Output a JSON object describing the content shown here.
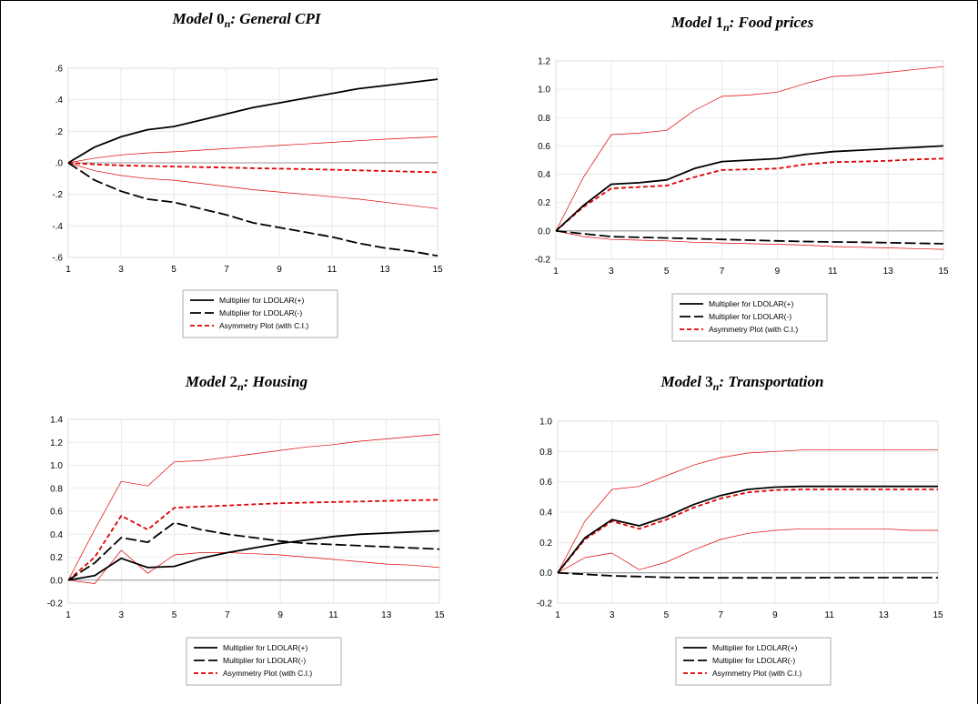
{
  "chart_data": [
    {
      "type": "line",
      "title": {
        "prefix": "Model ",
        "num": "0",
        "sub": "n",
        "suffix": ": General CPI"
      },
      "x": [
        1,
        2,
        3,
        4,
        5,
        6,
        7,
        8,
        9,
        10,
        11,
        12,
        13,
        14,
        15
      ],
      "x_ticks": [
        1,
        3,
        5,
        7,
        9,
        11,
        13,
        15
      ],
      "ylim": [
        -0.6,
        0.6
      ],
      "y_ticks": [
        -0.6,
        -0.4,
        -0.2,
        0.0,
        0.2,
        0.4,
        0.6
      ],
      "y_tick_labels": [
        "-.6",
        "-.4",
        "-.2",
        ".0",
        ".2",
        ".4",
        ".6"
      ],
      "grid": true,
      "legend_position": "bottom",
      "series": [
        {
          "name": "Multiplier for LDOLAR(+)",
          "style": "solid-black",
          "values": [
            0,
            0.1,
            0.165,
            0.21,
            0.23,
            0.27,
            0.31,
            0.35,
            0.38,
            0.41,
            0.44,
            0.47,
            0.49,
            0.51,
            0.53
          ]
        },
        {
          "name": "Multiplier for LDOLAR(-)",
          "style": "dash-black",
          "values": [
            0,
            -0.11,
            -0.18,
            -0.23,
            -0.25,
            -0.29,
            -0.33,
            -0.38,
            -0.41,
            -0.44,
            -0.47,
            -0.51,
            -0.54,
            -0.56,
            -0.59
          ]
        },
        {
          "name": "Asymmetry Plot (with C.I.)",
          "style": "dash-red",
          "values": [
            0,
            -0.01,
            -0.016,
            -0.02,
            -0.023,
            -0.027,
            -0.03,
            -0.034,
            -0.037,
            -0.04,
            -0.044,
            -0.048,
            -0.052,
            -0.056,
            -0.06
          ]
        },
        {
          "name": "",
          "style": "thin-red",
          "values": [
            0,
            0.03,
            0.05,
            0.063,
            0.07,
            0.08,
            0.09,
            0.1,
            0.11,
            0.12,
            0.13,
            0.14,
            0.15,
            0.158,
            0.165
          ]
        },
        {
          "name": "",
          "style": "thin-red",
          "values": [
            0,
            -0.05,
            -0.08,
            -0.1,
            -0.11,
            -0.13,
            -0.15,
            -0.17,
            -0.185,
            -0.2,
            -0.215,
            -0.23,
            -0.25,
            -0.27,
            -0.29
          ]
        }
      ]
    },
    {
      "type": "line",
      "title": {
        "prefix": "Model ",
        "num": "1",
        "sub": "n",
        "suffix": ": Food prices"
      },
      "x": [
        1,
        2,
        3,
        4,
        5,
        6,
        7,
        8,
        9,
        10,
        11,
        12,
        13,
        14,
        15
      ],
      "x_ticks": [
        1,
        3,
        5,
        7,
        9,
        11,
        13,
        15
      ],
      "ylim": [
        -0.2,
        1.2
      ],
      "y_ticks": [
        -0.2,
        0.0,
        0.2,
        0.4,
        0.6,
        0.8,
        1.0,
        1.2
      ],
      "y_tick_labels": [
        "-0.2",
        "0.0",
        "0.2",
        "0.4",
        "0.6",
        "0.8",
        "1.0",
        "1.2"
      ],
      "grid": true,
      "legend_position": "bottom",
      "series": [
        {
          "name": "Multiplier for LDOLAR(+)",
          "style": "solid-black",
          "values": [
            0,
            0.18,
            0.33,
            0.34,
            0.36,
            0.44,
            0.49,
            0.5,
            0.51,
            0.54,
            0.56,
            0.57,
            0.58,
            0.59,
            0.6
          ]
        },
        {
          "name": "Multiplier for LDOLAR(-)",
          "style": "dash-black",
          "values": [
            0,
            -0.02,
            -0.04,
            -0.045,
            -0.05,
            -0.055,
            -0.06,
            -0.065,
            -0.07,
            -0.075,
            -0.078,
            -0.08,
            -0.083,
            -0.087,
            -0.09
          ]
        },
        {
          "name": "Asymmetry Plot (with C.I.)",
          "style": "dash-red",
          "values": [
            0,
            0.17,
            0.3,
            0.31,
            0.32,
            0.38,
            0.43,
            0.435,
            0.44,
            0.47,
            0.485,
            0.49,
            0.495,
            0.505,
            0.51
          ]
        },
        {
          "name": "",
          "style": "thin-red",
          "values": [
            0,
            0.38,
            0.68,
            0.69,
            0.71,
            0.85,
            0.95,
            0.96,
            0.98,
            1.04,
            1.09,
            1.1,
            1.12,
            1.14,
            1.16
          ]
        },
        {
          "name": "",
          "style": "thin-red",
          "values": [
            0,
            -0.04,
            -0.06,
            -0.065,
            -0.07,
            -0.08,
            -0.085,
            -0.09,
            -0.095,
            -0.1,
            -0.11,
            -0.115,
            -0.12,
            -0.125,
            -0.13
          ]
        }
      ]
    },
    {
      "type": "line",
      "title": {
        "prefix": "Model ",
        "num": "2",
        "sub": "n",
        "suffix": ": Housing"
      },
      "x": [
        1,
        2,
        3,
        4,
        5,
        6,
        7,
        8,
        9,
        10,
        11,
        12,
        13,
        14,
        15
      ],
      "x_ticks": [
        1,
        3,
        5,
        7,
        9,
        11,
        13,
        15
      ],
      "ylim": [
        -0.2,
        1.4
      ],
      "y_ticks": [
        -0.2,
        0.0,
        0.2,
        0.4,
        0.6,
        0.8,
        1.0,
        1.2,
        1.4
      ],
      "y_tick_labels": [
        "-0.2",
        "0.0",
        "0.2",
        "0.4",
        "0.6",
        "0.8",
        "1.0",
        "1.2",
        "1.4"
      ],
      "grid": true,
      "legend_position": "bottom",
      "series": [
        {
          "name": "Multiplier for LDOLAR(+)",
          "style": "solid-black",
          "values": [
            0,
            0.04,
            0.19,
            0.11,
            0.12,
            0.19,
            0.24,
            0.28,
            0.32,
            0.35,
            0.38,
            0.4,
            0.41,
            0.42,
            0.43
          ]
        },
        {
          "name": "Multiplier for LDOLAR(-)",
          "style": "dash-black",
          "values": [
            0,
            0.15,
            0.37,
            0.33,
            0.5,
            0.44,
            0.4,
            0.37,
            0.34,
            0.32,
            0.31,
            0.3,
            0.29,
            0.28,
            0.27
          ]
        },
        {
          "name": "Asymmetry Plot (with C.I.)",
          "style": "dash-red",
          "values": [
            0,
            0.2,
            0.56,
            0.44,
            0.63,
            0.64,
            0.65,
            0.66,
            0.67,
            0.675,
            0.68,
            0.685,
            0.69,
            0.695,
            0.7
          ]
        },
        {
          "name": "",
          "style": "thin-red",
          "values": [
            0,
            0.44,
            0.86,
            0.82,
            1.03,
            1.04,
            1.07,
            1.1,
            1.13,
            1.16,
            1.18,
            1.21,
            1.23,
            1.25,
            1.27
          ]
        },
        {
          "name": "",
          "style": "thin-red",
          "values": [
            0,
            -0.03,
            0.26,
            0.06,
            0.22,
            0.24,
            0.24,
            0.23,
            0.22,
            0.2,
            0.18,
            0.16,
            0.14,
            0.13,
            0.11
          ]
        }
      ]
    },
    {
      "type": "line",
      "title": {
        "prefix": "Model ",
        "num": "3",
        "sub": "n",
        "suffix": ": Transportation"
      },
      "x": [
        1,
        2,
        3,
        4,
        5,
        6,
        7,
        8,
        9,
        10,
        11,
        12,
        13,
        14,
        15
      ],
      "x_ticks": [
        1,
        3,
        5,
        7,
        9,
        11,
        13,
        15
      ],
      "ylim": [
        -0.2,
        1.0
      ],
      "y_ticks": [
        -0.2,
        0.0,
        0.2,
        0.4,
        0.6,
        0.8,
        1.0
      ],
      "y_tick_labels": [
        "-0.2",
        "0.0",
        "0.2",
        "0.4",
        "0.6",
        "0.8",
        "1.0"
      ],
      "grid": true,
      "legend_position": "bottom",
      "series": [
        {
          "name": "Multiplier for LDOLAR(+)",
          "style": "solid-black",
          "values": [
            0,
            0.23,
            0.35,
            0.31,
            0.37,
            0.45,
            0.51,
            0.55,
            0.565,
            0.57,
            0.57,
            0.57,
            0.57,
            0.57,
            0.57
          ]
        },
        {
          "name": "Multiplier for LDOLAR(-)",
          "style": "dash-black",
          "values": [
            0,
            -0.01,
            -0.02,
            -0.025,
            -0.03,
            -0.032,
            -0.033,
            -0.033,
            -0.033,
            -0.033,
            -0.032,
            -0.032,
            -0.032,
            -0.032,
            -0.032
          ]
        },
        {
          "name": "Asymmetry Plot (with C.I.)",
          "style": "dash-red",
          "values": [
            0,
            0.22,
            0.34,
            0.29,
            0.35,
            0.43,
            0.49,
            0.53,
            0.545,
            0.55,
            0.55,
            0.55,
            0.55,
            0.55,
            0.55
          ]
        },
        {
          "name": "",
          "style": "thin-red",
          "values": [
            0,
            0.34,
            0.55,
            0.57,
            0.64,
            0.71,
            0.76,
            0.79,
            0.8,
            0.81,
            0.81,
            0.81,
            0.81,
            0.81,
            0.81
          ]
        },
        {
          "name": "",
          "style": "thin-red",
          "values": [
            0,
            0.1,
            0.13,
            0.02,
            0.07,
            0.15,
            0.22,
            0.26,
            0.28,
            0.29,
            0.29,
            0.29,
            0.29,
            0.28,
            0.28
          ]
        }
      ]
    }
  ]
}
